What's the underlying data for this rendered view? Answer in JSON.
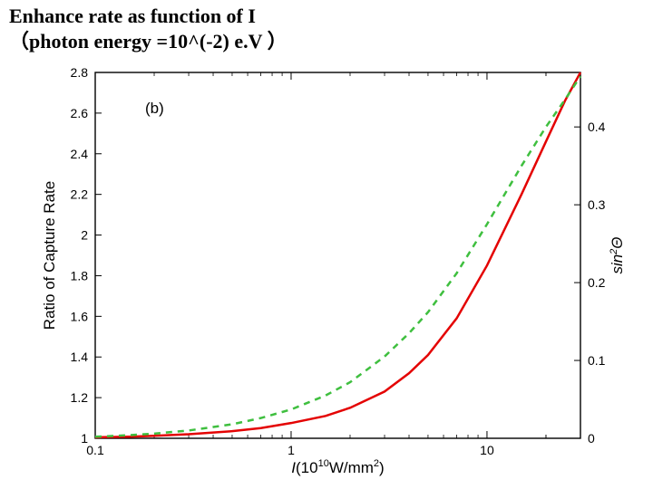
{
  "title": {
    "line1": "Enhance rate as function of I",
    "line2": "（photon energy =10^(-2) e.V ）"
  },
  "chart": {
    "type": "line",
    "panel_label": "(b)",
    "background_color": "#ffffff",
    "box_color": "#000000",
    "x": {
      "scale": "log",
      "min": 0.1,
      "max": 30,
      "label": "I(10¹⁰W/mm²)",
      "major_ticks": [
        0.1,
        1,
        10
      ],
      "label_fontsize": 17,
      "tick_fontsize": 14
    },
    "y_left": {
      "scale": "linear",
      "min": 1.0,
      "max": 2.8,
      "step": 0.2,
      "label": "Ratio of Capture Rate",
      "ticks": [
        1.0,
        1.2,
        1.4,
        1.6,
        1.8,
        2.0,
        2.2,
        2.4,
        2.6,
        2.8
      ],
      "tick_labels": [
        "1",
        "1.2",
        "1.4",
        "1.6",
        "1.8",
        "2",
        "2.2",
        "2.4",
        "2.6",
        "2.8"
      ],
      "label_fontsize": 17,
      "tick_fontsize": 14
    },
    "y_right": {
      "scale": "linear",
      "min": 0.0,
      "max": 0.47,
      "label": "sin²Θ",
      "ticks": [
        0,
        0.1,
        0.2,
        0.3,
        0.4
      ],
      "tick_labels": [
        "0",
        "0.1",
        "0.2",
        "0.3",
        "0.4"
      ],
      "label_fontsize": 17,
      "tick_fontsize": 14
    },
    "series": [
      {
        "name": "ratio_capture_rate",
        "axis": "left",
        "color": "#e40303",
        "style": "solid",
        "line_width": 2.5,
        "x": [
          0.1,
          0.15,
          0.2,
          0.3,
          0.5,
          0.7,
          1,
          1.5,
          2,
          3,
          4,
          5,
          7,
          10,
          15,
          20,
          25,
          30
        ],
        "y": [
          1.005,
          1.008,
          1.012,
          1.02,
          1.035,
          1.05,
          1.075,
          1.11,
          1.15,
          1.23,
          1.32,
          1.41,
          1.59,
          1.85,
          2.2,
          2.46,
          2.66,
          2.8
        ]
      },
      {
        "name": "sin2theta",
        "axis": "right",
        "color": "#3fbf3f",
        "style": "dashed",
        "line_width": 2.5,
        "x": [
          0.1,
          0.15,
          0.2,
          0.3,
          0.5,
          0.7,
          1,
          1.5,
          2,
          3,
          4,
          5,
          7,
          10,
          15,
          20,
          25,
          30
        ],
        "y": [
          0.002,
          0.004,
          0.006,
          0.01,
          0.018,
          0.026,
          0.037,
          0.055,
          0.072,
          0.105,
          0.135,
          0.162,
          0.212,
          0.275,
          0.35,
          0.4,
          0.435,
          0.465
        ]
      }
    ]
  }
}
